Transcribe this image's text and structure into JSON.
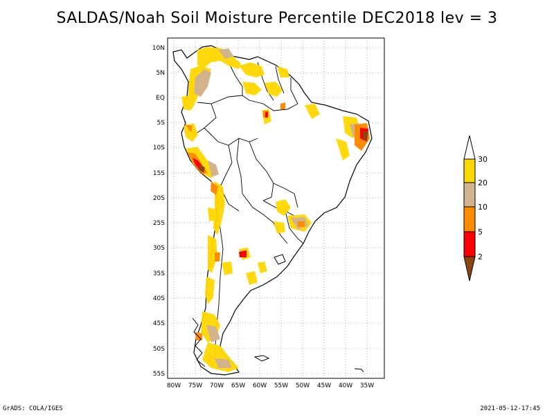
{
  "title": "SALDAS/Noah Soil Moisture Percentile DEC2018 lev = 3",
  "map": {
    "region": "South America",
    "lat_labels": [
      "10N",
      "5N",
      "EQ",
      "5S",
      "10S",
      "15S",
      "20S",
      "25S",
      "30S",
      "35S",
      "40S",
      "45S",
      "50S",
      "55S"
    ],
    "lon_labels": [
      "80W",
      "75W",
      "70W",
      "65W",
      "60W",
      "55W",
      "50W",
      "45W",
      "40W",
      "35W"
    ],
    "grid": "dotted"
  },
  "legend": {
    "labels": [
      "2",
      "5",
      "10",
      "20",
      "30"
    ],
    "colors": {
      "below_2": "#8B4513",
      "2_5": "#FF0000",
      "5_10": "#FF8C00",
      "10_20": "#D2B48C",
      "20_30": "#FFD700",
      "above_30": "#FFFFFF"
    }
  },
  "footer": {
    "left": "GrADS: COLA/IGES",
    "right": "2021-05-12-17:45"
  }
}
